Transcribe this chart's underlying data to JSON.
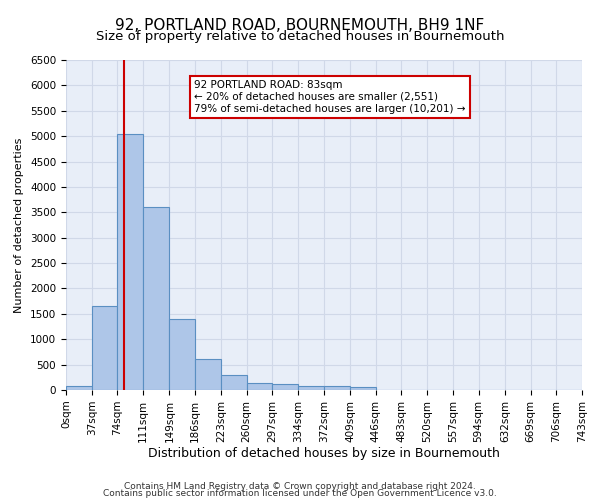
{
  "title": "92, PORTLAND ROAD, BOURNEMOUTH, BH9 1NF",
  "subtitle": "Size of property relative to detached houses in Bournemouth",
  "xlabel": "Distribution of detached houses by size in Bournemouth",
  "ylabel": "Number of detached properties",
  "footer_line1": "Contains HM Land Registry data © Crown copyright and database right 2024.",
  "footer_line2": "Contains public sector information licensed under the Open Government Licence v3.0.",
  "bin_edges": [
    0,
    37,
    74,
    111,
    149,
    186,
    223,
    260,
    297,
    334,
    372,
    409,
    446,
    483,
    520,
    557,
    594,
    632,
    669,
    706,
    743
  ],
  "bar_heights": [
    75,
    1650,
    5050,
    3600,
    1400,
    620,
    290,
    140,
    110,
    80,
    75,
    50,
    0,
    0,
    0,
    0,
    0,
    0,
    0,
    0
  ],
  "bar_color": "#aec6e8",
  "bar_edge_color": "#5a8fc2",
  "property_size": 83,
  "red_line_color": "#cc0000",
  "annotation_text_line1": "92 PORTLAND ROAD: 83sqm",
  "annotation_text_line2": "← 20% of detached houses are smaller (2,551)",
  "annotation_text_line3": "79% of semi-detached houses are larger (10,201) →",
  "annotation_box_color": "#ffffff",
  "annotation_box_edge_color": "#cc0000",
  "ylim": [
    0,
    6500
  ],
  "yticks": [
    0,
    500,
    1000,
    1500,
    2000,
    2500,
    3000,
    3500,
    4000,
    4500,
    5000,
    5500,
    6000,
    6500
  ],
  "grid_color": "#d0d8e8",
  "background_color": "#e8eef8",
  "title_fontsize": 11,
  "subtitle_fontsize": 9.5,
  "xlabel_fontsize": 9,
  "ylabel_fontsize": 8,
  "tick_fontsize": 7.5,
  "footer_fontsize": 6.5
}
